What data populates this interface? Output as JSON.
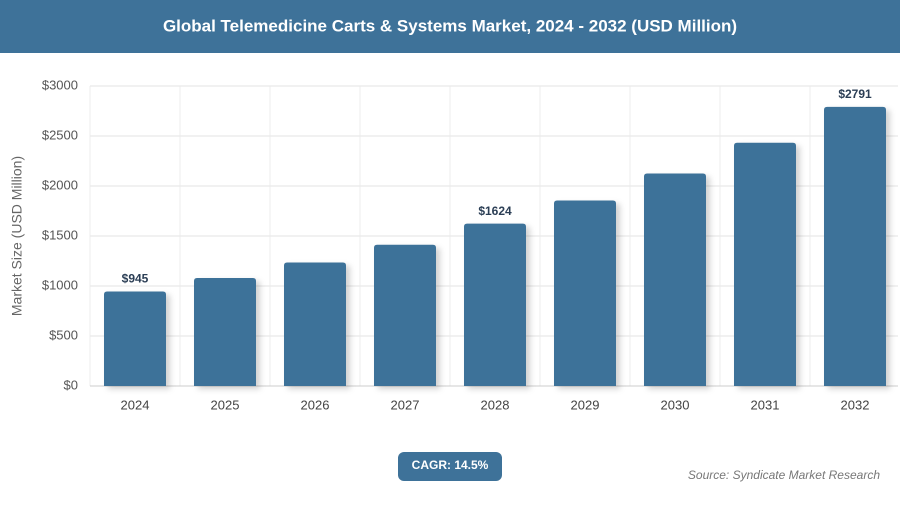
{
  "chart_data": {
    "type": "bar",
    "title": "Global Telemedicine Carts & Systems Market, 2024 - 2032 (USD Million)",
    "y_label": "Market Size (USD Million)",
    "categories": [
      "2024",
      "2025",
      "2026",
      "2027",
      "2028",
      "2029",
      "2030",
      "2031",
      "2032"
    ],
    "values": [
      945,
      1080,
      1235,
      1412,
      1624,
      1855,
      2125,
      2432,
      2791
    ],
    "value_labels": [
      "$945",
      null,
      null,
      null,
      "$1624",
      null,
      null,
      null,
      "$2791"
    ],
    "color": "#3e7299",
    "ylim": [
      0,
      3000
    ],
    "yticks": [
      {
        "value": 0,
        "label": "$0"
      },
      {
        "value": 500,
        "label": "$500"
      },
      {
        "value": 1000,
        "label": "$1000"
      },
      {
        "value": 1500,
        "label": "$1500"
      },
      {
        "value": 2000,
        "label": "$2000"
      },
      {
        "value": 2500,
        "label": "$2500"
      },
      {
        "value": 3000,
        "label": "$3000"
      }
    ],
    "grid": true,
    "annotation": "CAGR: 14.5%",
    "source": "Source: Syndicate Market Research"
  }
}
